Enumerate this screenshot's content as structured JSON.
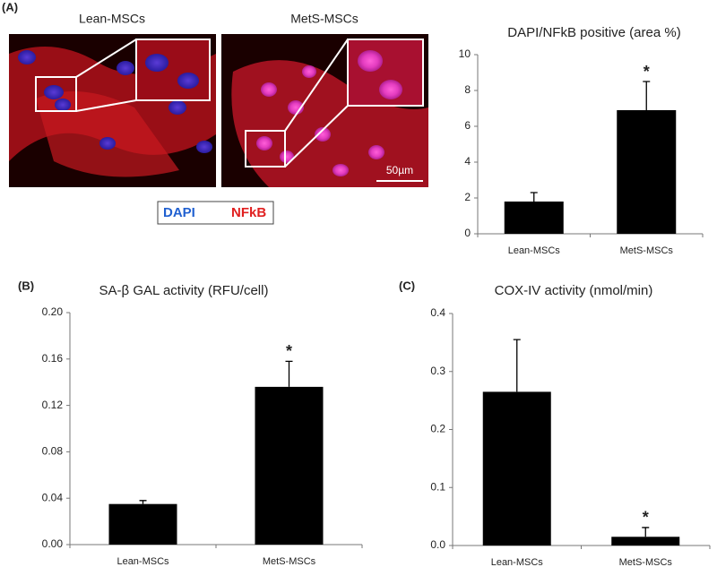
{
  "panels": {
    "a": "(A)",
    "b": "(B)",
    "c": "(C)"
  },
  "images": {
    "left_label": "Lean-MSCs",
    "right_label": "MetS-MSCs",
    "scale_bar": "50µm",
    "legend": {
      "dapi": "DAPI",
      "nfkb": "NFkB"
    }
  },
  "chart_data": [
    {
      "type": "bar",
      "title": "DAPI/NFkB positive  (area %)",
      "categories": [
        "Lean-MSCs",
        "MetS-MSCs"
      ],
      "values": [
        1.8,
        6.9
      ],
      "errors": [
        0.5,
        1.6
      ],
      "markers": [
        null,
        "*"
      ],
      "color": "#000000",
      "ylim": [
        0,
        10
      ],
      "yticks": [
        0,
        2,
        4,
        6,
        8,
        10
      ]
    },
    {
      "type": "bar",
      "title": "SA-β GAL activity (RFU/cell)",
      "categories": [
        "Lean-MSCs",
        "MetS-MSCs"
      ],
      "values": [
        0.035,
        0.136
      ],
      "errors": [
        0.003,
        0.022
      ],
      "markers": [
        null,
        "*"
      ],
      "color": "#000000",
      "ylim": [
        0,
        0.2
      ],
      "yticks": [
        {
          "value": 0,
          "label": "0.00"
        },
        {
          "value": 0.04,
          "label": "0.04"
        },
        {
          "value": 0.08,
          "label": "0.08"
        },
        {
          "value": 0.12,
          "label": "0.12"
        },
        {
          "value": 0.16,
          "label": "0.16"
        },
        {
          "value": 0.2,
          "label": "0.20"
        }
      ]
    },
    {
      "type": "bar",
      "title": "COX-IV activity (nmol/min)",
      "categories": [
        "Lean-MSCs",
        "MetS-MSCs"
      ],
      "values": [
        0.265,
        0.015
      ],
      "errors": [
        0.09,
        0.016
      ],
      "markers": [
        null,
        "*"
      ],
      "color": "#000000",
      "ylim": [
        0,
        0.4
      ],
      "yticks": [
        {
          "value": 0,
          "label": "0.0"
        },
        {
          "value": 0.1,
          "label": "0.1"
        },
        {
          "value": 0.2,
          "label": "0.2"
        },
        {
          "value": 0.3,
          "label": "0.3"
        },
        {
          "value": 0.4,
          "label": "0.4"
        }
      ]
    }
  ]
}
